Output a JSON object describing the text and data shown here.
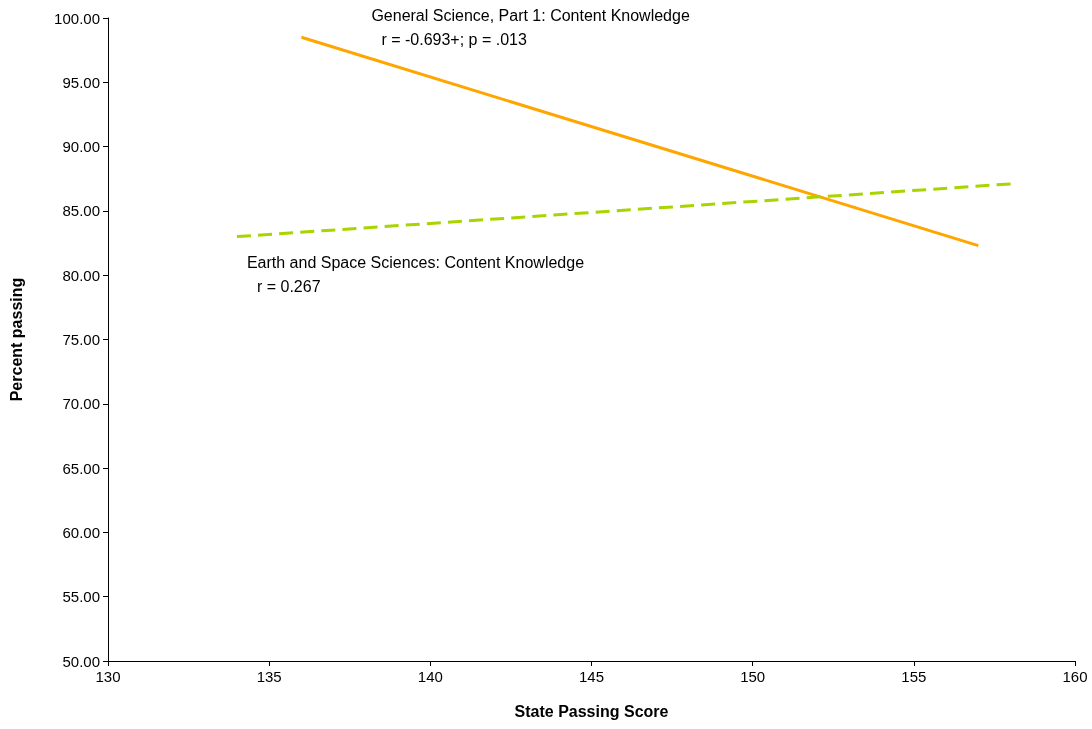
{
  "chart_data": {
    "type": "line",
    "xlabel": "State Passing Score",
    "ylabel": "Percent passing",
    "xlim": [
      130,
      160
    ],
    "xticks": [
      130,
      135,
      140,
      145,
      150,
      155,
      160
    ],
    "ylim": [
      50,
      100
    ],
    "yticks": [
      {
        "value": 50,
        "label": "50.00"
      },
      {
        "value": 55,
        "label": "55.00"
      },
      {
        "value": 60,
        "label": "60.00"
      },
      {
        "value": 65,
        "label": "65.00"
      },
      {
        "value": 70,
        "label": "70.00"
      },
      {
        "value": 75,
        "label": "75.00"
      },
      {
        "value": 80,
        "label": "80.00"
      },
      {
        "value": 85,
        "label": "85.00"
      },
      {
        "value": 90,
        "label": "90.00"
      },
      {
        "value": 95,
        "label": "95.00"
      },
      {
        "value": 100,
        "label": "100.00"
      }
    ],
    "series": [
      {
        "name": "General Science, Part 1: Content Knowledge",
        "color": "#ffa500",
        "x": [
          136,
          157
        ],
        "values": [
          98.5,
          82.3
        ],
        "line_style": "solid"
      },
      {
        "name": "Earth and Space Sciences: Content Knowledge",
        "color": "#a8d400",
        "x": [
          134,
          158
        ],
        "values": [
          83.0,
          87.1
        ],
        "line_style": "dashed"
      }
    ],
    "annotations": [
      "r = -0.693+; p = .013",
      "r = 0.267"
    ],
    "grid": false,
    "marker": "none"
  }
}
